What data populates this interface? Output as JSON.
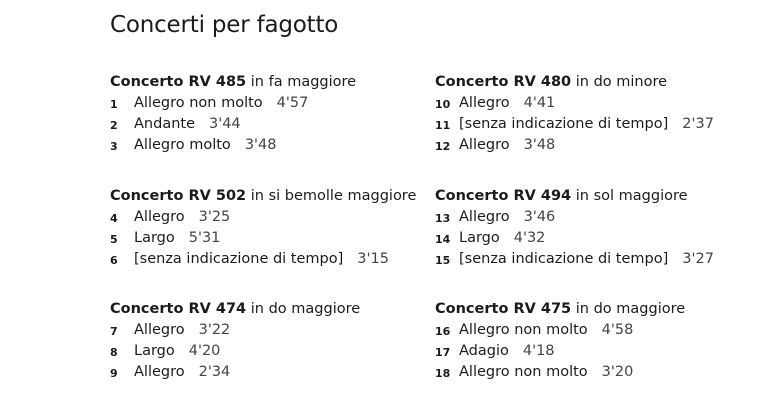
{
  "title": "Concerti per fagotto",
  "sections": [
    {
      "name": "Concerto RV 485",
      "key": "in fa maggiore",
      "tracks": [
        {
          "n": "1",
          "t": "Allegro non molto",
          "d": "4'57"
        },
        {
          "n": "2",
          "t": "Andante",
          "d": "3'44"
        },
        {
          "n": "3",
          "t": "Allegro molto",
          "d": "3'48"
        }
      ]
    },
    {
      "name": "Concerto RV 480",
      "key": "in do minore",
      "tracks": [
        {
          "n": "10",
          "t": "Allegro",
          "d": "4'41"
        },
        {
          "n": "11",
          "t": "[senza indicazione di tempo]",
          "d": "2'37"
        },
        {
          "n": "12",
          "t": "Allegro",
          "d": "3'48"
        }
      ]
    },
    {
      "name": "Concerto RV 502",
      "key": "in si bemolle maggiore",
      "tracks": [
        {
          "n": "4",
          "t": "Allegro",
          "d": "3'25"
        },
        {
          "n": "5",
          "t": "Largo",
          "d": "5'31"
        },
        {
          "n": "6",
          "t": "[senza indicazione di tempo]",
          "d": "3'15"
        }
      ]
    },
    {
      "name": "Concerto RV 494",
      "key": "in sol maggiore",
      "tracks": [
        {
          "n": "13",
          "t": "Allegro",
          "d": "3'46"
        },
        {
          "n": "14",
          "t": "Largo",
          "d": "4'32"
        },
        {
          "n": "15",
          "t": "[senza indicazione di tempo]",
          "d": "3'27"
        }
      ]
    },
    {
      "name": "Concerto RV 474",
      "key": "in do maggiore",
      "tracks": [
        {
          "n": "7",
          "t": "Allegro",
          "d": "3'22"
        },
        {
          "n": "8",
          "t": "Largo",
          "d": "4'20"
        },
        {
          "n": "9",
          "t": "Allegro",
          "d": "2'34"
        }
      ]
    },
    {
      "name": "Concerto RV 475",
      "key": "in do maggiore",
      "tracks": [
        {
          "n": "16",
          "t": "Allegro non molto",
          "d": "4'58"
        },
        {
          "n": "17",
          "t": "Adagio",
          "d": "4'18"
        },
        {
          "n": "18",
          "t": "Allegro non molto",
          "d": "3'20"
        }
      ]
    }
  ]
}
